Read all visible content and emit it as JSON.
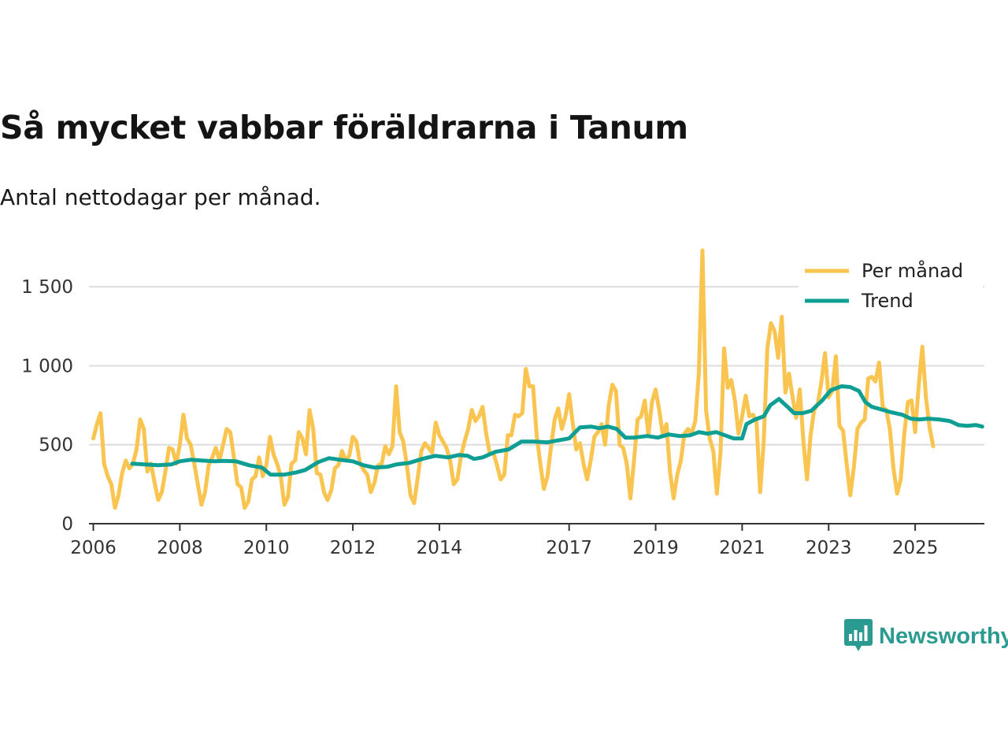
{
  "header": {
    "title": "Så mycket vabbar föräldrarna i Tanum",
    "subtitle": "Antal nettodagar per månad."
  },
  "branding": {
    "name": "Newsworthy",
    "logo_icon": "bar-chart-speech-bubble-icon",
    "color": "#2b9a91"
  },
  "colors": {
    "monthly": "#f9c550",
    "trend": "#0e9e93",
    "grid": "#dddddd",
    "axis": "#333333"
  },
  "chart_data": {
    "type": "line",
    "title": "Så mycket vabbar föräldrarna i Tanum",
    "subtitle": "Antal nettodagar per månad.",
    "xlim": [
      2005.9,
      2026.6
    ],
    "ylim": [
      0,
      1800
    ],
    "x_ticks": [
      2006,
      2008,
      2010,
      2012,
      2014,
      2017,
      2019,
      2021,
      2023,
      2025
    ],
    "x_tick_labels": [
      "2006",
      "2008",
      "2010",
      "2012",
      "2014",
      "2017",
      "2019",
      "2021",
      "2023",
      "2025"
    ],
    "y_ticks": [
      0,
      500,
      1000,
      1500
    ],
    "y_tick_labels": [
      "0",
      "500",
      "1 000",
      "1 500"
    ],
    "grid": "horizontal",
    "legend": "top-right",
    "series": [
      {
        "name": "Per månad",
        "color": "#f9c550",
        "x_start": 2006.0,
        "x_step": 0.08333,
        "values": [
          540,
          630,
          700,
          380,
          300,
          250,
          100,
          180,
          320,
          400,
          350,
          380,
          470,
          660,
          600,
          330,
          380,
          260,
          150,
          200,
          330,
          480,
          470,
          380,
          500,
          690,
          540,
          500,
          380,
          250,
          120,
          200,
          370,
          420,
          480,
          400,
          500,
          600,
          580,
          420,
          250,
          230,
          100,
          140,
          280,
          300,
          420,
          300,
          370,
          550,
          440,
          380,
          300,
          120,
          170,
          380,
          400,
          580,
          540,
          440,
          720,
          600,
          320,
          310,
          200,
          150,
          210,
          350,
          370,
          460,
          400,
          430,
          550,
          520,
          380,
          340,
          310,
          200,
          260,
          370,
          380,
          490,
          440,
          490,
          870,
          580,
          520,
          370,
          180,
          130,
          290,
          460,
          510,
          480,
          450,
          640,
          560,
          520,
          480,
          400,
          250,
          280,
          430,
          520,
          600,
          720,
          650,
          680,
          740,
          570,
          440,
          450,
          370,
          280,
          310,
          560,
          560,
          690,
          680,
          700,
          980,
          870,
          870,
          560,
          380,
          220,
          300,
          490,
          660,
          730,
          600,
          680,
          820,
          640,
          470,
          510,
          380,
          280,
          400,
          550,
          580,
          630,
          500,
          750,
          880,
          840,
          500,
          480,
          380,
          160,
          400,
          660,
          680,
          780,
          560,
          770,
          850,
          720,
          560,
          630,
          330,
          160,
          310,
          400,
          570,
          600,
          570,
          650,
          950,
          1730,
          720,
          540,
          460,
          190,
          450,
          1110,
          860,
          910,
          780,
          570,
          680,
          810,
          680,
          690,
          640,
          200,
          520,
          1110,
          1270,
          1220,
          1050,
          1310,
          830,
          950,
          800,
          670,
          850,
          520,
          280,
          560,
          720,
          760,
          900,
          1080,
          800,
          840,
          1060,
          620,
          590,
          380,
          180,
          360,
          600,
          640,
          660,
          920,
          930,
          900,
          1020,
          740,
          720,
          600,
          350,
          190,
          280,
          570,
          770,
          780,
          580,
          880,
          1120,
          800,
          610,
          490
        ]
      },
      {
        "name": "Trend",
        "color": "#0e9e93",
        "points": [
          [
            2006.9,
            380
          ],
          [
            2007.2,
            375
          ],
          [
            2007.5,
            370
          ],
          [
            2007.8,
            375
          ],
          [
            2008.0,
            395
          ],
          [
            2008.25,
            405
          ],
          [
            2008.5,
            400
          ],
          [
            2008.8,
            395
          ],
          [
            2009.0,
            398
          ],
          [
            2009.3,
            395
          ],
          [
            2009.6,
            370
          ],
          [
            2009.9,
            355
          ],
          [
            2010.1,
            310
          ],
          [
            2010.4,
            310
          ],
          [
            2010.7,
            325
          ],
          [
            2010.9,
            340
          ],
          [
            2011.2,
            390
          ],
          [
            2011.45,
            415
          ],
          [
            2011.7,
            405
          ],
          [
            2012.0,
            395
          ],
          [
            2012.25,
            370
          ],
          [
            2012.5,
            355
          ],
          [
            2012.8,
            360
          ],
          [
            2013.0,
            375
          ],
          [
            2013.3,
            385
          ],
          [
            2013.6,
            410
          ],
          [
            2013.9,
            430
          ],
          [
            2014.2,
            420
          ],
          [
            2014.45,
            435
          ],
          [
            2014.65,
            430
          ],
          [
            2014.8,
            410
          ],
          [
            2015.0,
            420
          ],
          [
            2015.3,
            455
          ],
          [
            2015.6,
            470
          ],
          [
            2015.9,
            520
          ],
          [
            2016.2,
            520
          ],
          [
            2016.5,
            515
          ],
          [
            2016.8,
            530
          ],
          [
            2017.0,
            540
          ],
          [
            2017.25,
            610
          ],
          [
            2017.5,
            615
          ],
          [
            2017.7,
            605
          ],
          [
            2017.9,
            615
          ],
          [
            2018.1,
            600
          ],
          [
            2018.3,
            545
          ],
          [
            2018.5,
            545
          ],
          [
            2018.8,
            555
          ],
          [
            2019.05,
            545
          ],
          [
            2019.3,
            565
          ],
          [
            2019.55,
            555
          ],
          [
            2019.8,
            560
          ],
          [
            2020.0,
            580
          ],
          [
            2020.2,
            570
          ],
          [
            2020.4,
            580
          ],
          [
            2020.6,
            560
          ],
          [
            2020.8,
            540
          ],
          [
            2021.0,
            540
          ],
          [
            2021.1,
            630
          ],
          [
            2021.3,
            660
          ],
          [
            2021.5,
            680
          ],
          [
            2021.65,
            750
          ],
          [
            2021.85,
            790
          ],
          [
            2022.05,
            740
          ],
          [
            2022.2,
            700
          ],
          [
            2022.4,
            700
          ],
          [
            2022.6,
            715
          ],
          [
            2022.85,
            780
          ],
          [
            2023.05,
            845
          ],
          [
            2023.3,
            870
          ],
          [
            2023.5,
            865
          ],
          [
            2023.7,
            840
          ],
          [
            2023.85,
            770
          ],
          [
            2024.0,
            740
          ],
          [
            2024.2,
            725
          ],
          [
            2024.45,
            705
          ],
          [
            2024.7,
            690
          ],
          [
            2024.9,
            665
          ],
          [
            2025.1,
            660
          ],
          [
            2025.3,
            665
          ],
          [
            2025.55,
            660
          ],
          [
            2025.8,
            650
          ],
          [
            2026.0,
            625
          ],
          [
            2026.2,
            620
          ],
          [
            2026.4,
            625
          ],
          [
            2026.55,
            615
          ]
        ]
      }
    ]
  }
}
